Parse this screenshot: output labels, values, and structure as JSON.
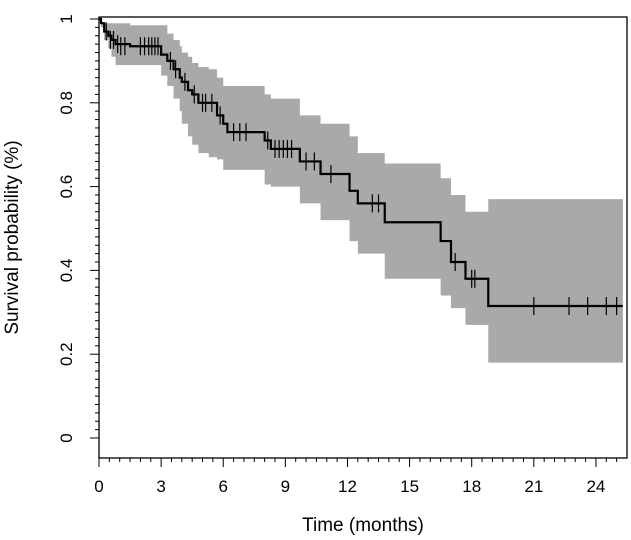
{
  "chart_data": {
    "type": "line",
    "subtype": "kaplan-meier survival curve with confidence band",
    "title": "",
    "xlabel": "Time (months)",
    "ylabel": "Survival probability (%)",
    "xlim": [
      0,
      25.5
    ],
    "ylim": [
      0,
      1.0
    ],
    "x_ticks": [
      0,
      3,
      6,
      9,
      12,
      15,
      18,
      21,
      24
    ],
    "x_tick_labels": [
      "0",
      "3",
      "6",
      "9",
      "12",
      "15",
      "18",
      "21",
      "24"
    ],
    "y_ticks": [
      0,
      0.2,
      0.4,
      0.6,
      0.8,
      1
    ],
    "y_tick_labels": [
      "0",
      "0.2",
      "0.4",
      "0.6",
      "0.8",
      "1"
    ],
    "x_minor_tick_step": 0.5,
    "y_minor_tick_step": 0.02,
    "grid": false,
    "legend": "none",
    "colors": {
      "line": "#000000",
      "band": "#a9a9a9",
      "frame": "#000000"
    },
    "series": [
      {
        "x": [
          0,
          0.1,
          0.25,
          0.45,
          0.6,
          0.8,
          1.5,
          3.0,
          3.3,
          3.6,
          3.9,
          4.0,
          4.3,
          4.5,
          4.8,
          5.3,
          5.7,
          6.0,
          6.2,
          8.0,
          8.3,
          9.7,
          10.7,
          12.1,
          12.5,
          13.8,
          16.5,
          17.0,
          17.7,
          18.8,
          25.3
        ],
        "y": [
          1.0,
          0.99,
          0.97,
          0.96,
          0.95,
          0.94,
          0.935,
          0.915,
          0.9,
          0.88,
          0.86,
          0.85,
          0.83,
          0.82,
          0.8,
          0.8,
          0.77,
          0.75,
          0.73,
          0.71,
          0.69,
          0.66,
          0.63,
          0.59,
          0.56,
          0.515,
          0.47,
          0.42,
          0.38,
          0.315,
          0.315
        ],
        "lower": [
          1.0,
          0.98,
          0.95,
          0.93,
          0.91,
          0.89,
          0.89,
          0.865,
          0.84,
          0.81,
          0.78,
          0.75,
          0.72,
          0.7,
          0.68,
          0.67,
          0.665,
          0.64,
          0.64,
          0.605,
          0.6,
          0.56,
          0.52,
          0.47,
          0.44,
          0.38,
          0.34,
          0.31,
          0.27,
          0.18,
          0.18
        ],
        "upper": [
          1.0,
          0.99,
          0.99,
          0.99,
          0.99,
          0.99,
          0.985,
          0.985,
          0.965,
          0.95,
          0.935,
          0.92,
          0.91,
          0.895,
          0.885,
          0.88,
          0.86,
          0.84,
          0.84,
          0.82,
          0.81,
          0.77,
          0.75,
          0.72,
          0.68,
          0.655,
          0.62,
          0.58,
          0.54,
          0.57,
          0.57
        ]
      }
    ],
    "censored": [
      {
        "x": 0.35,
        "y": 0.97
      },
      {
        "x": 0.55,
        "y": 0.95
      },
      {
        "x": 0.7,
        "y": 0.95
      },
      {
        "x": 0.9,
        "y": 0.94
      },
      {
        "x": 1.05,
        "y": 0.935
      },
      {
        "x": 1.25,
        "y": 0.935
      },
      {
        "x": 2.0,
        "y": 0.935
      },
      {
        "x": 2.2,
        "y": 0.935
      },
      {
        "x": 2.4,
        "y": 0.935
      },
      {
        "x": 2.55,
        "y": 0.935
      },
      {
        "x": 2.7,
        "y": 0.935
      },
      {
        "x": 2.85,
        "y": 0.935
      },
      {
        "x": 3.45,
        "y": 0.9
      },
      {
        "x": 3.7,
        "y": 0.88
      },
      {
        "x": 4.15,
        "y": 0.85
      },
      {
        "x": 4.6,
        "y": 0.82
      },
      {
        "x": 5.0,
        "y": 0.8
      },
      {
        "x": 5.15,
        "y": 0.8
      },
      {
        "x": 5.45,
        "y": 0.8
      },
      {
        "x": 5.85,
        "y": 0.77
      },
      {
        "x": 6.5,
        "y": 0.73
      },
      {
        "x": 6.8,
        "y": 0.73
      },
      {
        "x": 7.1,
        "y": 0.73
      },
      {
        "x": 8.15,
        "y": 0.71
      },
      {
        "x": 8.5,
        "y": 0.69
      },
      {
        "x": 8.7,
        "y": 0.69
      },
      {
        "x": 8.9,
        "y": 0.69
      },
      {
        "x": 9.1,
        "y": 0.69
      },
      {
        "x": 9.3,
        "y": 0.69
      },
      {
        "x": 10.0,
        "y": 0.66
      },
      {
        "x": 10.4,
        "y": 0.66
      },
      {
        "x": 11.2,
        "y": 0.63
      },
      {
        "x": 13.2,
        "y": 0.56
      },
      {
        "x": 13.5,
        "y": 0.56
      },
      {
        "x": 17.2,
        "y": 0.42
      },
      {
        "x": 18.0,
        "y": 0.38
      },
      {
        "x": 18.15,
        "y": 0.38
      },
      {
        "x": 21.0,
        "y": 0.315
      },
      {
        "x": 22.7,
        "y": 0.315
      },
      {
        "x": 23.6,
        "y": 0.315
      },
      {
        "x": 24.5,
        "y": 0.315
      },
      {
        "x": 25.0,
        "y": 0.315
      }
    ]
  }
}
